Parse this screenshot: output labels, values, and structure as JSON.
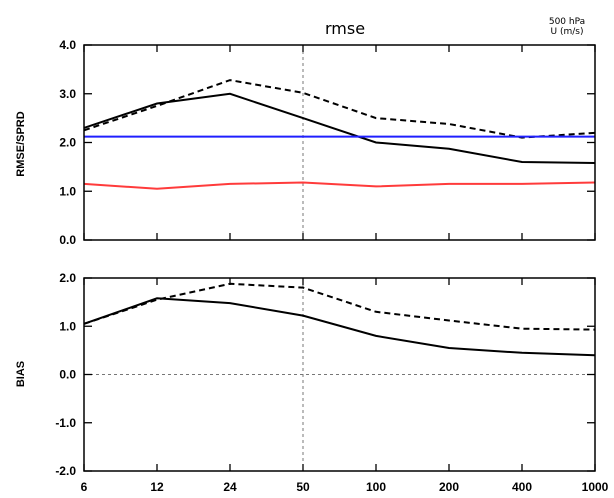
{
  "chart_data": [
    {
      "type": "line",
      "title": "rmse",
      "corner_label_lines": [
        "500 hPa",
        "U (m/s)"
      ],
      "ylabel": "RMSE/SPRD",
      "ylim": [
        0.0,
        4.0
      ],
      "yticks": [
        "0.0",
        "1.0",
        "2.0",
        "3.0",
        "4.0"
      ],
      "x": [
        "6",
        "12",
        "24",
        "50",
        "100",
        "200",
        "400",
        "1000"
      ],
      "vline_at_category": "50",
      "series": [
        {
          "style": "dashed",
          "color": "#000000",
          "values": [
            2.25,
            2.75,
            3.28,
            3.02,
            2.5,
            2.38,
            2.1,
            2.2
          ]
        },
        {
          "style": "solid",
          "color": "#000000",
          "values": [
            2.3,
            2.8,
            3.0,
            2.5,
            2.0,
            1.87,
            1.6,
            1.58
          ]
        },
        {
          "style": "solid",
          "color": "#1f1fff",
          "values": [
            2.12,
            2.12,
            2.12,
            2.12,
            2.12,
            2.12,
            2.12,
            2.12
          ]
        },
        {
          "style": "solid",
          "color": "#ff3b3b",
          "values": [
            1.15,
            1.05,
            1.15,
            1.18,
            1.1,
            1.15,
            1.15,
            1.18
          ]
        }
      ]
    },
    {
      "type": "line",
      "title": "",
      "ylabel": "BIAS",
      "ylim": [
        -2.0,
        2.0
      ],
      "yticks": [
        "-2.0",
        "-1.0",
        "0.0",
        "1.0",
        "2.0"
      ],
      "x": [
        "6",
        "12",
        "24",
        "50",
        "100",
        "200",
        "400",
        "1000"
      ],
      "vline_at_category": "50",
      "hline_at_value": 0.0,
      "series": [
        {
          "style": "dashed",
          "color": "#000000",
          "values": [
            1.05,
            1.55,
            1.88,
            1.8,
            1.3,
            1.12,
            0.95,
            0.93
          ]
        },
        {
          "style": "solid",
          "color": "#000000",
          "values": [
            1.05,
            1.58,
            1.48,
            1.22,
            0.8,
            0.55,
            0.45,
            0.4
          ]
        }
      ]
    }
  ]
}
